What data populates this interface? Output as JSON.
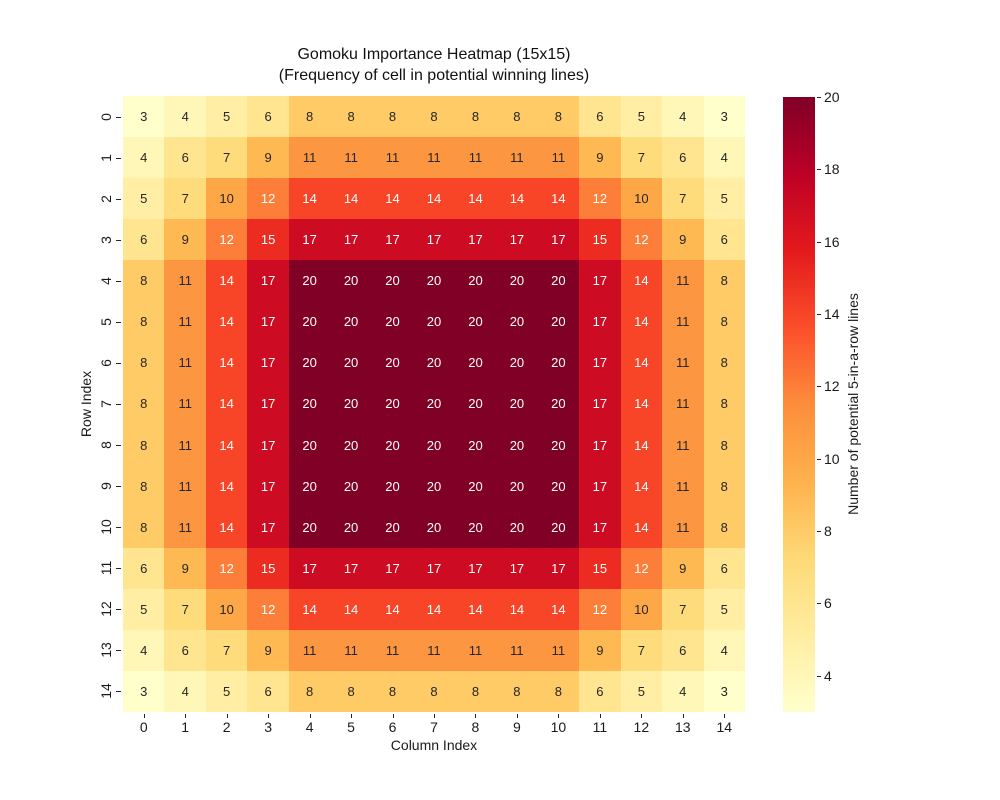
{
  "chart_data": {
    "type": "heatmap",
    "title": "Gomoku Importance Heatmap (15x15)",
    "subtitle": "(Frequency of cell in potential winning lines)",
    "xlabel": "Column Index",
    "ylabel": "Row Index",
    "colorbar_label": "Number of potential 5-in-a-row lines",
    "x_ticks": [
      "0",
      "1",
      "2",
      "3",
      "4",
      "5",
      "6",
      "7",
      "8",
      "9",
      "10",
      "11",
      "12",
      "13",
      "14"
    ],
    "y_ticks": [
      "0",
      "1",
      "2",
      "3",
      "4",
      "5",
      "6",
      "7",
      "8",
      "9",
      "10",
      "11",
      "12",
      "13",
      "14"
    ],
    "colorbar_ticks": [
      4,
      6,
      8,
      10,
      12,
      14,
      16,
      18,
      20
    ],
    "vmin": 3,
    "vmax": 20,
    "colormap": "YlOrRd",
    "colormap_stops": [
      {
        "pos": 0.0,
        "color": "#ffffcc"
      },
      {
        "pos": 0.125,
        "color": "#ffeda0"
      },
      {
        "pos": 0.25,
        "color": "#fed976"
      },
      {
        "pos": 0.375,
        "color": "#feb24c"
      },
      {
        "pos": 0.5,
        "color": "#fd8d3c"
      },
      {
        "pos": 0.625,
        "color": "#fc4e2a"
      },
      {
        "pos": 0.75,
        "color": "#e31a1c"
      },
      {
        "pos": 0.875,
        "color": "#bd0026"
      },
      {
        "pos": 1.0,
        "color": "#800026"
      }
    ],
    "annotation_dark_color": "#262626",
    "annotation_light_color": "#ffffff",
    "values": [
      [
        3,
        4,
        5,
        6,
        8,
        8,
        8,
        8,
        8,
        8,
        8,
        6,
        5,
        4,
        3
      ],
      [
        4,
        6,
        7,
        9,
        11,
        11,
        11,
        11,
        11,
        11,
        11,
        9,
        7,
        6,
        4
      ],
      [
        5,
        7,
        10,
        12,
        14,
        14,
        14,
        14,
        14,
        14,
        14,
        12,
        10,
        7,
        5
      ],
      [
        6,
        9,
        12,
        15,
        17,
        17,
        17,
        17,
        17,
        17,
        17,
        15,
        12,
        9,
        6
      ],
      [
        8,
        11,
        14,
        17,
        20,
        20,
        20,
        20,
        20,
        20,
        20,
        17,
        14,
        11,
        8
      ],
      [
        8,
        11,
        14,
        17,
        20,
        20,
        20,
        20,
        20,
        20,
        20,
        17,
        14,
        11,
        8
      ],
      [
        8,
        11,
        14,
        17,
        20,
        20,
        20,
        20,
        20,
        20,
        20,
        17,
        14,
        11,
        8
      ],
      [
        8,
        11,
        14,
        17,
        20,
        20,
        20,
        20,
        20,
        20,
        20,
        17,
        14,
        11,
        8
      ],
      [
        8,
        11,
        14,
        17,
        20,
        20,
        20,
        20,
        20,
        20,
        20,
        17,
        14,
        11,
        8
      ],
      [
        8,
        11,
        14,
        17,
        20,
        20,
        20,
        20,
        20,
        20,
        20,
        17,
        14,
        11,
        8
      ],
      [
        8,
        11,
        14,
        17,
        20,
        20,
        20,
        20,
        20,
        20,
        20,
        17,
        14,
        11,
        8
      ],
      [
        6,
        9,
        12,
        15,
        17,
        17,
        17,
        17,
        17,
        17,
        17,
        15,
        12,
        9,
        6
      ],
      [
        5,
        7,
        10,
        12,
        14,
        14,
        14,
        14,
        14,
        14,
        14,
        12,
        10,
        7,
        5
      ],
      [
        4,
        6,
        7,
        9,
        11,
        11,
        11,
        11,
        11,
        11,
        11,
        9,
        7,
        6,
        4
      ],
      [
        3,
        4,
        5,
        6,
        8,
        8,
        8,
        8,
        8,
        8,
        8,
        6,
        5,
        4,
        3
      ]
    ]
  }
}
